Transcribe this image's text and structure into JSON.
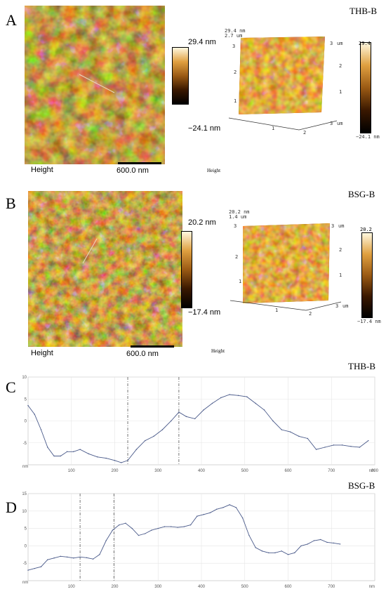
{
  "panels": [
    {
      "letter": "A",
      "sample": "THB-B",
      "afm2d": {
        "colorbar_max": "29.4 nm",
        "colorbar_min": "−24.1 nm",
        "height_label": "Height",
        "scale_label": "600.0 nm"
      },
      "afm3d": {
        "z_top": "29.4 nm",
        "z_mid": "2.7 um",
        "height_label": "Height",
        "cbar_max": "29.4",
        "cbar_min": "−24.1 nm",
        "axis_unit": "um",
        "ticks": [
          "1",
          "2",
          "3"
        ]
      }
    },
    {
      "letter": "B",
      "sample": "BSG-B",
      "afm2d": {
        "colorbar_max": "20.2 nm",
        "colorbar_min": "−17.4 nm",
        "height_label": "Height",
        "scale_label": "600.0 nm"
      },
      "afm3d": {
        "z_top": "20.2 nm",
        "z_mid": "1.4 um",
        "height_label": "Height",
        "cbar_max": "20.2",
        "cbar_min": "−17.4 nm",
        "axis_unit": "um",
        "ticks": [
          "1",
          "2",
          "3"
        ]
      }
    }
  ],
  "profiles": [
    {
      "letter": "C",
      "sample": "THB-B",
      "x_unit": "nm",
      "y_unit": "nm",
      "xlim": [
        0,
        800
      ],
      "ylim": [
        -10,
        10
      ],
      "x_ticks": [
        100,
        200,
        300,
        400,
        500,
        600,
        700,
        800
      ],
      "y_ticks": [
        10,
        5,
        0,
        -5
      ],
      "markers": [
        230,
        348
      ],
      "x": [
        0,
        15,
        30,
        45,
        60,
        75,
        90,
        105,
        120,
        140,
        160,
        180,
        200,
        215,
        230,
        250,
        270,
        290,
        310,
        330,
        348,
        365,
        385,
        405,
        425,
        445,
        465,
        485,
        505,
        525,
        545,
        565,
        585,
        605,
        625,
        645,
        665,
        685,
        705,
        725,
        745,
        765,
        785
      ],
      "y": [
        3.5,
        1.5,
        -2,
        -6,
        -8,
        -8,
        -7,
        -7,
        -6.5,
        -7.5,
        -8.2,
        -8.5,
        -9,
        -9.5,
        -9,
        -6.5,
        -4.5,
        -3.5,
        -2,
        0,
        2,
        1,
        0.5,
        2.5,
        4,
        5.3,
        6,
        5.8,
        5.5,
        4,
        2.5,
        0,
        -2,
        -2.5,
        -3.5,
        -4,
        -6.5,
        -6,
        -5.5,
        -5.5,
        -5.8,
        -6,
        -4.5
      ]
    },
    {
      "letter": "D",
      "sample": "BSG-B",
      "x_unit": "nm",
      "y_unit": "nm",
      "xlim": [
        0,
        800
      ],
      "ylim": [
        -10,
        15
      ],
      "x_ticks": [
        100,
        200,
        300,
        400,
        500,
        600,
        700
      ],
      "y_ticks": [
        15,
        10,
        5,
        0,
        -5
      ],
      "markers": [
        120,
        198
      ],
      "x": [
        0,
        15,
        30,
        45,
        60,
        75,
        90,
        105,
        120,
        135,
        150,
        165,
        180,
        195,
        210,
        225,
        240,
        255,
        270,
        285,
        300,
        315,
        330,
        345,
        360,
        375,
        390,
        405,
        420,
        435,
        450,
        465,
        480,
        495,
        510,
        525,
        540,
        555,
        570,
        585,
        600,
        615,
        630,
        645,
        660,
        675,
        690,
        705,
        720
      ],
      "y": [
        -7,
        -6.5,
        -6,
        -4,
        -3.5,
        -3,
        -3.2,
        -3.5,
        -3.2,
        -3.4,
        -3.8,
        -2.5,
        1.5,
        4.5,
        6,
        6.5,
        5,
        3,
        3.5,
        4.5,
        5,
        5.5,
        5.5,
        5.3,
        5.5,
        6,
        8.5,
        9,
        9.5,
        10.5,
        11,
        11.8,
        11,
        8,
        3,
        -0.5,
        -1.5,
        -2,
        -2,
        -1.5,
        -2.5,
        -2,
        0,
        0.5,
        1.5,
        1.8,
        1,
        0.8,
        0.5
      ]
    }
  ],
  "colors": {
    "afm_dark": "#2a1200",
    "afm_mid": "#9a5a14",
    "afm_light": "#fff3cf",
    "profile_line": "#4a5a8a",
    "marker_line": "#555555"
  }
}
